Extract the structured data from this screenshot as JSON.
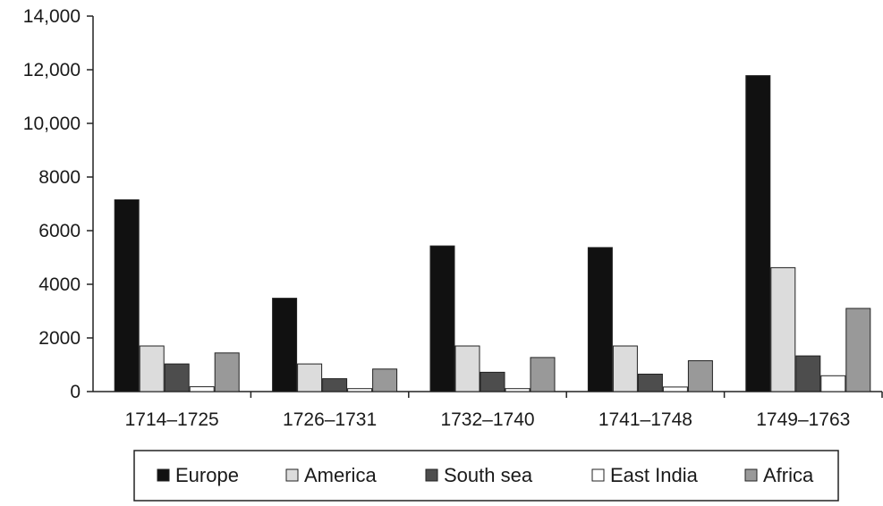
{
  "chart_data": {
    "type": "bar",
    "title": "",
    "xlabel": "",
    "ylabel": "",
    "ylim": [
      0,
      14000
    ],
    "yticks": [
      {
        "value": 0,
        "label": "0"
      },
      {
        "value": 2000,
        "label": "2000"
      },
      {
        "value": 4000,
        "label": "4000"
      },
      {
        "value": 6000,
        "label": "6000"
      },
      {
        "value": 8000,
        "label": "8000"
      },
      {
        "value": 10000,
        "label": "10,000"
      },
      {
        "value": 12000,
        "label": "12,000"
      },
      {
        "value": 14000,
        "label": "14,000"
      }
    ],
    "categories": [
      "1714–1725",
      "1726–1731",
      "1732–1740",
      "1741–1748",
      "1749–1763"
    ],
    "series": [
      {
        "name": "Europe",
        "color": "#111111",
        "values": [
          7150,
          3480,
          5430,
          5370,
          11780
        ]
      },
      {
        "name": "America",
        "color": "#dcdcdc",
        "values": [
          1700,
          1030,
          1700,
          1700,
          4620
        ]
      },
      {
        "name": "South sea",
        "color": "#4d4d4d",
        "values": [
          1030,
          480,
          720,
          650,
          1330
        ]
      },
      {
        "name": "East India",
        "color": "#ffffff",
        "values": [
          180,
          110,
          110,
          170,
          590
        ]
      },
      {
        "name": "Africa",
        "color": "#999999",
        "values": [
          1440,
          840,
          1270,
          1150,
          3100
        ]
      }
    ],
    "grid": false,
    "legend_position": "bottom-center"
  }
}
